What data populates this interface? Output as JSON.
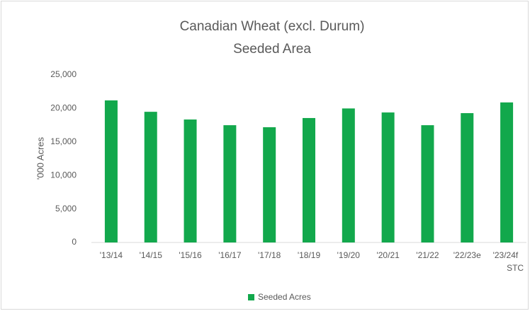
{
  "chart_data": {
    "type": "bar",
    "title": "Canadian Wheat (excl. Durum)",
    "subtitle": "Seeded Area",
    "y_label": "'000  Acres",
    "categories": [
      "'13/14",
      "'14/15",
      "'15/16",
      "'16/17",
      "'17/18",
      "'18/19",
      "'19/20",
      "'20/21",
      "'21/22",
      "'22/23e",
      "'23/24f STC"
    ],
    "series": [
      {
        "name": "Seeded Acres",
        "color": "#12a84c",
        "values": [
          21200,
          19500,
          18350,
          17500,
          17200,
          18570,
          20000,
          19400,
          17500,
          19300,
          20900
        ]
      }
    ],
    "ylim": [
      0,
      25000
    ],
    "yticks": [
      0,
      {
        "value": 5000,
        "label": "5,000"
      },
      {
        "value": 10000,
        "label": "10,000"
      },
      {
        "value": 15000,
        "label": "15,000"
      },
      {
        "value": 20000,
        "label": "20,000"
      },
      {
        "value": 25000,
        "label": "25,000"
      }
    ],
    "grid": false,
    "legend": "bottom"
  }
}
